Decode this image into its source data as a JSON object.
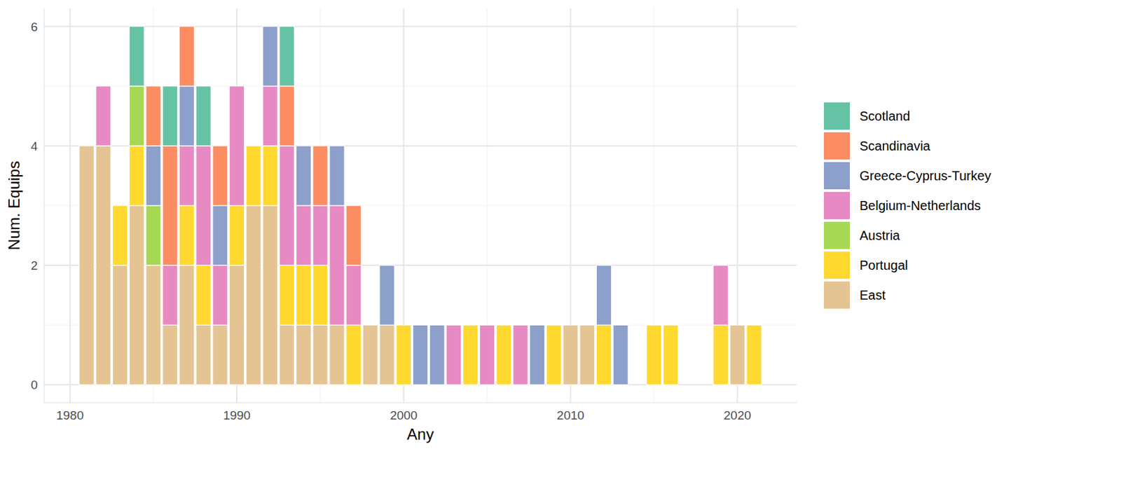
{
  "chart_data": {
    "type": "bar",
    "stacked": true,
    "grid": true,
    "legend": "right",
    "x_label": "Any",
    "y_label": "Num. Equips",
    "x": [
      1981,
      1982,
      1983,
      1984,
      1985,
      1986,
      1987,
      1988,
      1989,
      1990,
      1991,
      1992,
      1993,
      1994,
      1995,
      1996,
      1997,
      1998,
      1999,
      2000,
      2001,
      2002,
      2003,
      2004,
      2005,
      2006,
      2007,
      2008,
      2009,
      2010,
      2011,
      2012,
      2013,
      2014,
      2015,
      2016,
      2017,
      2018,
      2019,
      2020,
      2021
    ],
    "xlim": [
      1978.45,
      2023.55
    ],
    "xticks": [
      1980,
      1990,
      2000,
      2010,
      2020
    ],
    "ylim": [
      -0.3,
      6.3
    ],
    "yticks": [
      0,
      2,
      4,
      6
    ],
    "series": [
      {
        "name": "East",
        "color": "#e5c494",
        "values": [
          4,
          4,
          2,
          3,
          2,
          1,
          2,
          1,
          1,
          2,
          3,
          3,
          1,
          1,
          1,
          1,
          0,
          1,
          1,
          0,
          0,
          0,
          0,
          0,
          0,
          0,
          0,
          0,
          0,
          1,
          1,
          0,
          0,
          0,
          0,
          0,
          0,
          0,
          0,
          1,
          0
        ]
      },
      {
        "name": "Portugal",
        "color": "#ffd92f",
        "values": [
          0,
          0,
          1,
          1,
          0,
          0,
          1,
          1,
          0,
          1,
          1,
          1,
          1,
          1,
          1,
          0,
          1,
          0,
          0,
          1,
          0,
          0,
          0,
          1,
          0,
          1,
          0,
          0,
          1,
          0,
          0,
          1,
          0,
          0,
          1,
          1,
          0,
          0,
          1,
          0,
          1
        ]
      },
      {
        "name": "Austria",
        "color": "#a6d854",
        "values": [
          0,
          0,
          0,
          1,
          1,
          0,
          0,
          0,
          0,
          0,
          0,
          0,
          0,
          0,
          0,
          0,
          0,
          0,
          0,
          0,
          0,
          0,
          0,
          0,
          0,
          0,
          0,
          0,
          0,
          0,
          0,
          0,
          0,
          0,
          0,
          0,
          0,
          0,
          0,
          0,
          0
        ]
      },
      {
        "name": "Belgium-Netherlands",
        "color": "#e78ac3",
        "values": [
          0,
          1,
          0,
          0,
          0,
          1,
          1,
          2,
          1,
          2,
          0,
          1,
          2,
          1,
          1,
          2,
          1,
          0,
          0,
          0,
          0,
          0,
          1,
          0,
          1,
          0,
          1,
          0,
          0,
          0,
          0,
          0,
          0,
          0,
          0,
          0,
          0,
          0,
          1,
          0,
          0
        ]
      },
      {
        "name": "Greece-Cyprus-Turkey",
        "color": "#8da0cb",
        "values": [
          0,
          0,
          0,
          0,
          1,
          0,
          1,
          0,
          1,
          0,
          0,
          1,
          0,
          1,
          0,
          1,
          0,
          0,
          1,
          0,
          1,
          1,
          0,
          0,
          0,
          0,
          0,
          1,
          0,
          0,
          0,
          1,
          1,
          0,
          0,
          0,
          0,
          0,
          0,
          0,
          0
        ]
      },
      {
        "name": "Scandinavia",
        "color": "#fc8d62",
        "values": [
          0,
          0,
          0,
          0,
          1,
          2,
          1,
          0,
          1,
          0,
          0,
          0,
          1,
          0,
          1,
          0,
          1,
          0,
          0,
          0,
          0,
          0,
          0,
          0,
          0,
          0,
          0,
          0,
          0,
          0,
          0,
          0,
          0,
          0,
          0,
          0,
          0,
          0,
          0,
          0,
          0
        ]
      },
      {
        "name": "Scotland",
        "color": "#66c2a5",
        "values": [
          0,
          0,
          0,
          1,
          0,
          1,
          0,
          1,
          0,
          0,
          0,
          0,
          1,
          0,
          0,
          0,
          0,
          0,
          0,
          0,
          0,
          0,
          0,
          0,
          0,
          0,
          0,
          0,
          0,
          0,
          0,
          0,
          0,
          0,
          0,
          0,
          0,
          0,
          0,
          0,
          0
        ]
      }
    ]
  }
}
